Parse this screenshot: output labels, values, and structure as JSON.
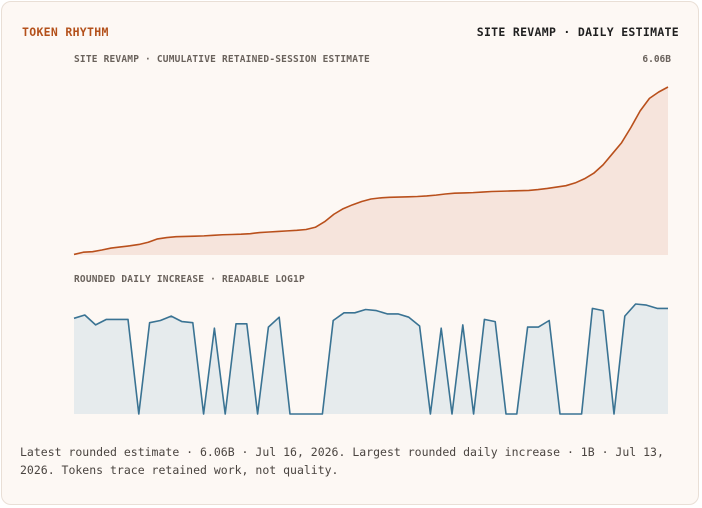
{
  "brand": "TOKEN RHYTHM",
  "headline": "SITE REVAMP · DAILY ESTIMATE",
  "colors": {
    "accent": "#b4511b",
    "cumulative_line": "#b9501c",
    "cumulative_fill": "#f6e4dc",
    "daily_line": "#3a7393",
    "daily_fill": "#e6ebed",
    "background": "#fdf8f4"
  },
  "caption": "Latest rounded estimate · 6.06B · Jul 16, 2026. Largest rounded daily increase · 1B · Jul 13, 2026. Tokens trace retained work, not quality.",
  "chart_data": [
    {
      "type": "area",
      "title": "SITE REVAMP · CUMULATIVE RETAINED-SESSION ESTIMATE",
      "total_label": "6.06B",
      "xlabel": "",
      "ylabel": "",
      "axes_visible": false,
      "ylim": [
        0,
        6.06
      ],
      "series": [
        {
          "values": [
            0.02,
            0.1,
            0.12,
            0.18,
            0.25,
            0.29,
            0.33,
            0.38,
            0.46,
            0.58,
            0.63,
            0.66,
            0.67,
            0.68,
            0.69,
            0.71,
            0.73,
            0.74,
            0.75,
            0.77,
            0.81,
            0.83,
            0.85,
            0.87,
            0.89,
            0.92,
            1.0,
            1.2,
            1.47,
            1.67,
            1.81,
            1.93,
            2.02,
            2.06,
            2.08,
            2.09,
            2.1,
            2.11,
            2.13,
            2.16,
            2.2,
            2.23,
            2.24,
            2.25,
            2.27,
            2.29,
            2.3,
            2.31,
            2.32,
            2.33,
            2.36,
            2.4,
            2.45,
            2.5,
            2.6,
            2.75,
            2.95,
            3.25,
            3.65,
            4.05,
            4.6,
            5.2,
            5.65,
            5.88,
            6.06
          ]
        }
      ]
    },
    {
      "type": "area",
      "title": "ROUNDED DAILY INCREASE · READABLE LOG1P",
      "xlabel": "",
      "ylabel": "",
      "axes_visible": false,
      "scale": "log1p",
      "ylim": [
        0,
        1
      ],
      "series": [
        {
          "values": [
            0.87,
            0.9,
            0.81,
            0.86,
            0.86,
            0.86,
            0.0,
            0.83,
            0.85,
            0.89,
            0.84,
            0.83,
            0.0,
            0.78,
            0.0,
            0.82,
            0.82,
            0.0,
            0.79,
            0.88,
            0.0,
            0.0,
            0.0,
            0.0,
            0.85,
            0.92,
            0.92,
            0.95,
            0.94,
            0.91,
            0.91,
            0.88,
            0.8,
            0.0,
            0.78,
            0.0,
            0.81,
            0.0,
            0.86,
            0.84,
            0.0,
            0.0,
            0.79,
            0.79,
            0.85,
            0.0,
            0.0,
            0.0,
            0.96,
            0.94,
            0.0,
            0.89,
            1.0,
            0.99,
            0.96,
            0.96
          ]
        }
      ]
    }
  ]
}
